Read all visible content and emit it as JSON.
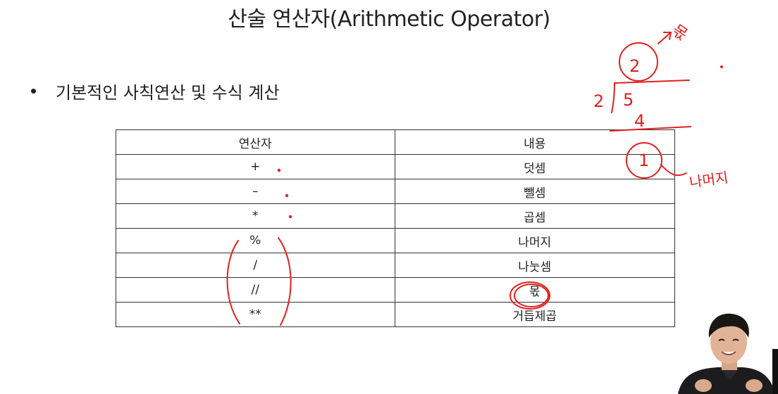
{
  "slide": {
    "title": "산술 연산자(Arithmetic Operator)",
    "bullet": "기본적인 사칙연산 및 수식 계산"
  },
  "table": {
    "headers": [
      "연산자",
      "내용"
    ],
    "rows": [
      [
        "+",
        "덧셈"
      ],
      [
        "–",
        "뺄셈"
      ],
      [
        "*",
        "곱셈"
      ],
      [
        "%",
        "나머지"
      ],
      [
        "/",
        "나눗셈"
      ],
      [
        "//",
        "몫"
      ],
      [
        "**",
        "거듭제곱"
      ]
    ]
  },
  "annotations": {
    "ink_color": "#e02020",
    "handwriting": [
      "2",
      "2",
      "5",
      "4",
      "1",
      "몫",
      "나머지"
    ]
  },
  "webcam": {
    "present": true
  }
}
